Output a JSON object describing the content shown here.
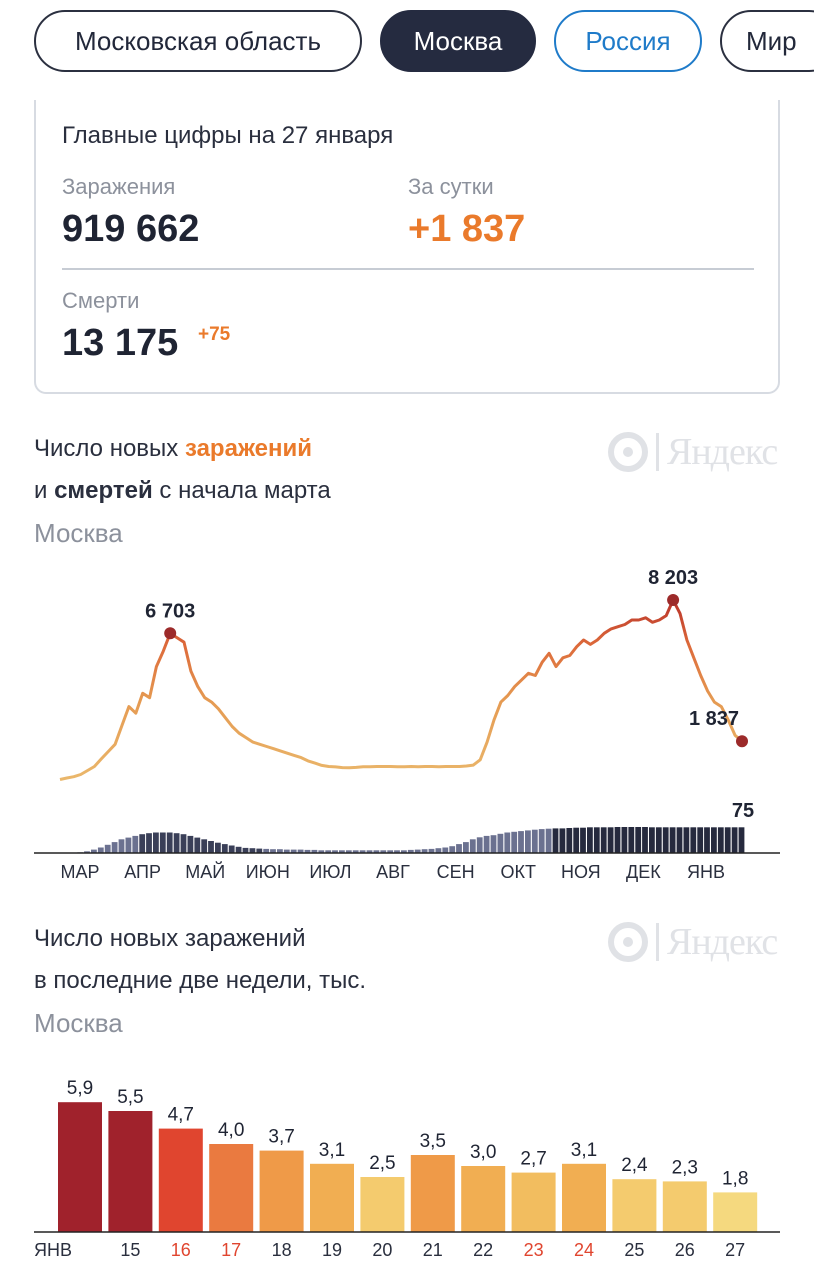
{
  "tabs": [
    {
      "label": "Московская область",
      "state": "default"
    },
    {
      "label": "Москва",
      "state": "active"
    },
    {
      "label": "Россия",
      "state": "blue"
    },
    {
      "label": "Мир",
      "state": "default"
    }
  ],
  "summary": {
    "title": "Главные цифры на 27 января",
    "infections_label": "Заражения",
    "infections_value": "919 662",
    "daily_label": "За сутки",
    "daily_value": "+1 837",
    "deaths_label": "Смерти",
    "deaths_value": "13 175",
    "deaths_delta": "+75"
  },
  "brand_text": "Яндекс",
  "colors": {
    "accent": "#ea7a2b",
    "dark": "#252b40",
    "blue": "#1f7bc9"
  },
  "chart1_heading": {
    "l1_pre": "Число новых ",
    "l1_hl": "заражений",
    "l2_pre": "и ",
    "l2_bold": "смертей",
    "l2_post": " с начала марта",
    "region": "Москва"
  },
  "chart2_heading": {
    "l1": "Число новых заражений",
    "l2": "в последние две недели, тыс.",
    "region": "Москва"
  },
  "chart_data": [
    {
      "type": "line",
      "months": [
        "МАР",
        "АПР",
        "МАЙ",
        "ИЮН",
        "ИЮЛ",
        "АВГ",
        "СЕН",
        "ОКТ",
        "НОЯ",
        "ДЕК",
        "ЯНВ"
      ],
      "series": [
        {
          "values": [
            114,
            180,
            240,
            340,
            520,
            700,
            1040,
            1370,
            1700,
            2550,
            3400,
            3100,
            4000,
            3800,
            5200,
            5900,
            6703,
            6500,
            6300,
            5000,
            4300,
            3800,
            3600,
            3300,
            2900,
            2500,
            2200,
            2000,
            1800,
            1700,
            1600,
            1500,
            1400,
            1300,
            1200,
            1100,
            950,
            850,
            750,
            700,
            680,
            650,
            640,
            660,
            690,
            690,
            700,
            700,
            700,
            690,
            690,
            700,
            690,
            700,
            700,
            690,
            700,
            700,
            700,
            720,
            760,
            1000,
            1800,
            2800,
            3600,
            3900,
            4300,
            4600,
            4900,
            4800,
            5400,
            5800,
            5200,
            5600,
            5700,
            6100,
            6400,
            6200,
            6400,
            6700,
            6900,
            7000,
            7100,
            7300,
            7300,
            7400,
            7200,
            7300,
            7500,
            8203,
            7600,
            6400,
            5600,
            4800,
            4100,
            3600,
            3400,
            2800,
            2100,
            1837
          ],
          "annotations": [
            {
              "label": "6 703",
              "value": 6703
            },
            {
              "label": "8 203",
              "value": 8203
            },
            {
              "label": "1 837",
              "value": 1837
            }
          ]
        },
        {
          "values": [
            0,
            0,
            1,
            2,
            5,
            10,
            16,
            24,
            32,
            40,
            45,
            50,
            55,
            58,
            60,
            60,
            60,
            58,
            55,
            50,
            45,
            40,
            35,
            30,
            26,
            22,
            18,
            15,
            14,
            13,
            12,
            11,
            11,
            10,
            10,
            10,
            9,
            9,
            8,
            8,
            8,
            8,
            8,
            8,
            8,
            8,
            8,
            8,
            8,
            8,
            8,
            9,
            10,
            11,
            12,
            14,
            16,
            20,
            26,
            32,
            40,
            46,
            50,
            52,
            56,
            60,
            62,
            64,
            66,
            68,
            70,
            71,
            72,
            72,
            73,
            74,
            74,
            75,
            75,
            75,
            75,
            76,
            76,
            76,
            76,
            76,
            75,
            75,
            75,
            75,
            75,
            75,
            75,
            75,
            75,
            75,
            75,
            75,
            75,
            75
          ],
          "annotations": [
            {
              "label": "75",
              "value": 75
            }
          ]
        }
      ]
    },
    {
      "type": "bar",
      "categories": [
        "ЯНВ",
        "15",
        "16",
        "17",
        "18",
        "19",
        "20",
        "21",
        "22",
        "23",
        "24",
        "25",
        "26",
        "27"
      ],
      "values": [
        5.9,
        5.5,
        4.7,
        4.0,
        3.7,
        3.1,
        2.5,
        3.5,
        3.0,
        2.7,
        3.1,
        2.4,
        2.3,
        1.8
      ],
      "value_labels": [
        "5,9",
        "5,5",
        "4,7",
        "4,0",
        "3,7",
        "3,1",
        "2,5",
        "3,5",
        "3,0",
        "2,7",
        "3,1",
        "2,4",
        "2,3",
        "1,8"
      ],
      "highlight_labels": [
        "16",
        "17",
        "23",
        "24"
      ],
      "highlight_color": "#e0452f",
      "ylim": [
        0,
        6.6
      ]
    }
  ]
}
